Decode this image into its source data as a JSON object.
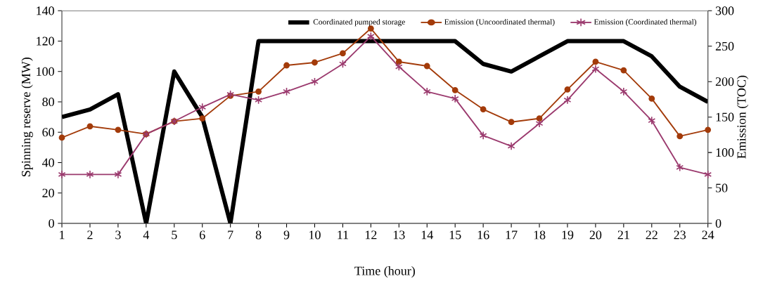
{
  "chart_data": {
    "type": "line",
    "xlabel": "Time (hour)",
    "ylabel": "Spinning reserve (MW)",
    "y2label": "Emission (TOC)",
    "x": [
      1,
      2,
      3,
      4,
      5,
      6,
      7,
      8,
      9,
      10,
      11,
      12,
      13,
      14,
      15,
      16,
      17,
      18,
      19,
      20,
      21,
      22,
      23,
      24
    ],
    "xlim": [
      1,
      24
    ],
    "xticks": [
      1,
      2,
      3,
      4,
      5,
      6,
      7,
      8,
      9,
      10,
      11,
      12,
      13,
      14,
      15,
      16,
      17,
      18,
      19,
      20,
      21,
      22,
      23,
      24
    ],
    "ylim": [
      0,
      140
    ],
    "yticks": [
      0,
      20,
      40,
      60,
      80,
      100,
      120,
      140
    ],
    "y2lim": [
      0,
      300
    ],
    "y2ticks": [
      0,
      50,
      100,
      150,
      200,
      250,
      300
    ],
    "legend": "top right",
    "grid": false,
    "series": [
      {
        "name": "Coordinated pumped storage",
        "color": "#000000",
        "axis": "y",
        "marker": "none",
        "values": [
          70,
          75,
          85,
          0,
          100,
          70,
          0,
          120,
          120,
          120,
          120,
          120,
          120,
          120,
          120,
          105,
          100,
          110,
          120,
          120,
          120,
          110,
          90,
          80
        ]
      },
      {
        "name": "Emission (Uncoordinated thermal)",
        "color": "#a33b0a",
        "axis": "y2",
        "marker": "circle",
        "values": [
          121,
          137,
          132,
          126,
          144,
          148,
          180,
          186,
          223,
          227,
          240,
          275,
          228,
          222,
          188,
          161,
          143,
          148,
          189,
          228,
          216,
          176,
          123,
          132
        ]
      },
      {
        "name": "Emission (Coordinated thermal)",
        "color": "#9b3a6e",
        "axis": "y2",
        "marker": "cross",
        "values": [
          69,
          69,
          69,
          126,
          144,
          164,
          182,
          174,
          186,
          200,
          225,
          264,
          221,
          186,
          176,
          124,
          109,
          141,
          174,
          218,
          186,
          145,
          79,
          69
        ]
      }
    ]
  }
}
